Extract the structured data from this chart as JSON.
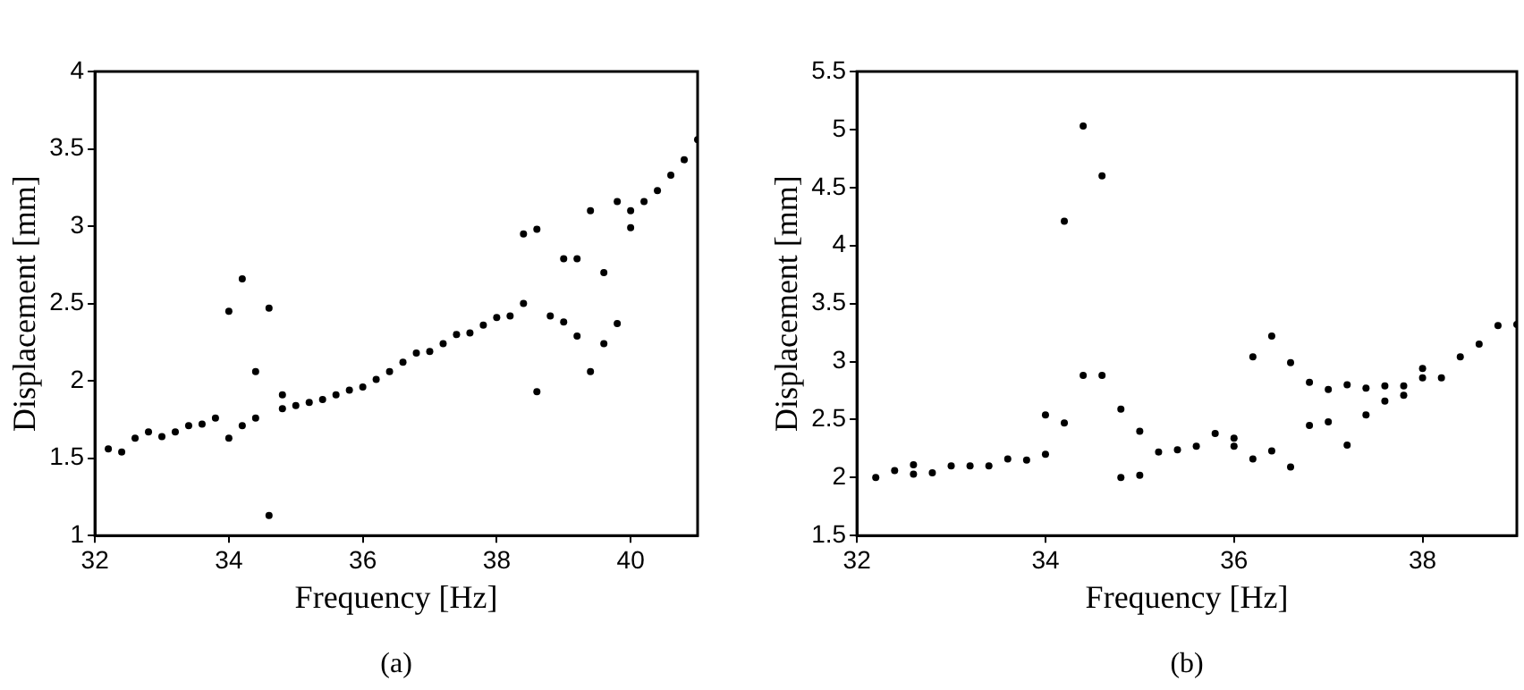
{
  "chart_data": [
    {
      "type": "scatter",
      "xlabel": "Frequency [Hz]",
      "ylabel": "Displacement [mm]",
      "annotations": [
        "(a)"
      ],
      "xlim": [
        32,
        41
      ],
      "xticks": [
        32,
        34,
        36,
        38,
        40
      ],
      "ylim": [
        1,
        4
      ],
      "yticks": [
        1,
        1.5,
        2,
        2.5,
        3,
        3.5,
        4
      ],
      "grid": false,
      "legend": false,
      "marker": "circle",
      "series": [
        {
          "color": "#000000",
          "x": [
            32.2,
            32.4,
            32.6,
            32.8,
            33.0,
            33.2,
            33.4,
            33.6,
            33.8,
            34.0,
            34.0,
            34.2,
            34.2,
            34.4,
            34.4,
            34.6,
            34.6,
            34.8,
            34.8,
            35.0,
            35.2,
            35.4,
            35.6,
            35.8,
            36.0,
            36.2,
            36.4,
            36.6,
            36.8,
            37.0,
            37.2,
            37.4,
            37.6,
            37.8,
            38.0,
            38.2,
            38.4,
            38.4,
            38.6,
            38.6,
            38.8,
            39.0,
            39.0,
            39.2,
            39.2,
            39.4,
            39.4,
            39.6,
            39.6,
            39.8,
            39.8,
            40.0,
            40.0,
            40.2,
            40.4,
            40.6,
            40.8,
            41.0
          ],
          "values": [
            1.56,
            1.54,
            1.63,
            1.67,
            1.64,
            1.67,
            1.71,
            1.72,
            1.76,
            1.63,
            2.45,
            1.71,
            2.66,
            1.76,
            2.06,
            2.47,
            1.13,
            1.91,
            1.82,
            1.84,
            1.86,
            1.88,
            1.91,
            1.94,
            1.96,
            2.01,
            2.06,
            2.12,
            2.18,
            2.19,
            2.24,
            2.3,
            2.31,
            2.36,
            2.41,
            2.42,
            2.5,
            2.95,
            2.98,
            1.93,
            2.42,
            2.79,
            2.38,
            2.79,
            2.29,
            3.1,
            2.06,
            2.7,
            2.24,
            3.16,
            2.37,
            3.1,
            2.99,
            3.16,
            3.23,
            3.33,
            3.43,
            3.56
          ]
        }
      ]
    },
    {
      "type": "scatter",
      "xlabel": "Frequency [Hz]",
      "ylabel": "Displacement [mm]",
      "annotations": [
        "(b)"
      ],
      "xlim": [
        32,
        39
      ],
      "xticks": [
        32,
        34,
        36,
        38
      ],
      "ylim": [
        1.5,
        5.5
      ],
      "yticks": [
        1.5,
        2,
        2.5,
        3,
        3.5,
        4,
        4.5,
        5,
        5.5
      ],
      "grid": false,
      "legend": false,
      "marker": "circle",
      "series": [
        {
          "color": "#000000",
          "x": [
            32.2,
            32.4,
            32.6,
            32.6,
            32.8,
            33.0,
            33.2,
            33.4,
            33.6,
            33.8,
            34.0,
            34.0,
            34.2,
            34.2,
            34.4,
            34.4,
            34.6,
            34.6,
            34.8,
            34.8,
            35.0,
            35.0,
            35.2,
            35.4,
            35.6,
            35.8,
            36.0,
            36.0,
            36.2,
            36.2,
            36.4,
            36.4,
            36.6,
            36.6,
            36.8,
            36.8,
            37.0,
            37.0,
            37.2,
            37.2,
            37.4,
            37.4,
            37.6,
            37.6,
            37.8,
            37.8,
            38.0,
            38.0,
            38.2,
            38.4,
            38.6,
            38.8,
            39.0
          ],
          "values": [
            2.0,
            2.06,
            2.11,
            2.03,
            2.04,
            2.1,
            2.1,
            2.1,
            2.16,
            2.15,
            2.54,
            2.2,
            4.21,
            2.47,
            5.03,
            2.88,
            4.6,
            2.88,
            2.59,
            2.0,
            2.4,
            2.02,
            2.22,
            2.24,
            2.27,
            2.38,
            2.34,
            2.27,
            3.04,
            2.16,
            3.22,
            2.23,
            2.99,
            2.09,
            2.82,
            2.45,
            2.76,
            2.48,
            2.8,
            2.28,
            2.77,
            2.54,
            2.79,
            2.66,
            2.79,
            2.71,
            2.94,
            2.86,
            2.86,
            3.04,
            3.15,
            3.31,
            3.32
          ]
        }
      ]
    }
  ]
}
